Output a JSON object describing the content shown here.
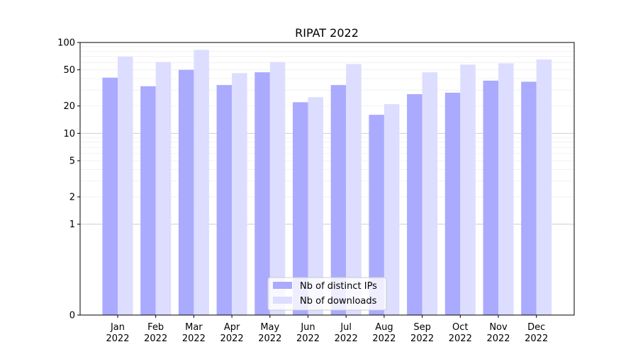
{
  "chart_data": {
    "type": "bar",
    "title": "RIPAT 2022",
    "xlabel": "",
    "ylabel": "",
    "y_scale": "symlog",
    "ylim": [
      0,
      100
    ],
    "y_ticks": [
      0,
      1,
      2,
      5,
      10,
      20,
      50,
      100
    ],
    "categories": [
      [
        "Jan",
        "2022"
      ],
      [
        "Feb",
        "2022"
      ],
      [
        "Mar",
        "2022"
      ],
      [
        "Apr",
        "2022"
      ],
      [
        "May",
        "2022"
      ],
      [
        "Jun",
        "2022"
      ],
      [
        "Jul",
        "2022"
      ],
      [
        "Aug",
        "2022"
      ],
      [
        "Sep",
        "2022"
      ],
      [
        "Oct",
        "2022"
      ],
      [
        "Nov",
        "2022"
      ],
      [
        "Dec",
        "2022"
      ]
    ],
    "series": [
      {
        "name": "Nb of distinct IPs",
        "color": "#aaaaff",
        "values": [
          41,
          33,
          50,
          34,
          47,
          22,
          34,
          16,
          27,
          28,
          38,
          37
        ]
      },
      {
        "name": "Nb of downloads",
        "color": "#ddddff",
        "values": [
          70,
          61,
          83,
          46,
          61,
          25,
          58,
          21,
          47,
          57,
          59,
          65
        ]
      }
    ],
    "grid": "horizontal",
    "legend_position": "lower-center"
  }
}
